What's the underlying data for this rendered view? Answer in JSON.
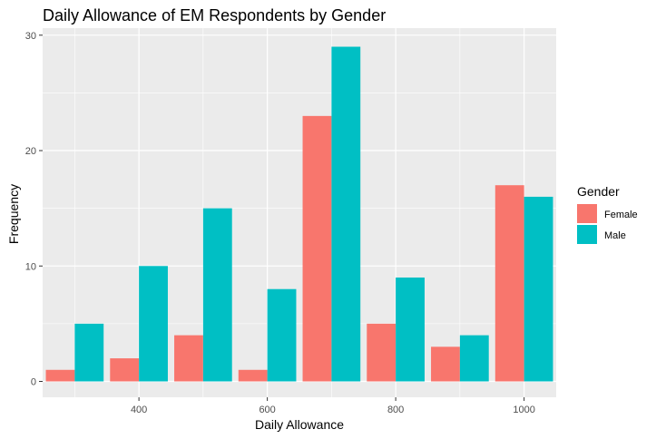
{
  "chart_data": {
    "type": "bar",
    "title": "Daily Allowance of EM Respondents by Gender",
    "xlabel": "Daily Allowance",
    "ylabel": "Frequency",
    "xlim": [
      250,
      1050
    ],
    "ylim": [
      0,
      30
    ],
    "bin_width": 100,
    "x": [
      300,
      400,
      500,
      600,
      700,
      800,
      900,
      1000
    ],
    "x_ticks": [
      400,
      600,
      800,
      1000
    ],
    "y_ticks": [
      0,
      10,
      20,
      30
    ],
    "series": [
      {
        "name": "Female",
        "color": "#F8766D",
        "values": [
          1,
          2,
          4,
          1,
          23,
          5,
          3,
          17
        ]
      },
      {
        "name": "Male",
        "color": "#00BFC4",
        "values": [
          5,
          10,
          15,
          8,
          29,
          9,
          4,
          16
        ]
      }
    ],
    "legend": {
      "title": "Gender",
      "position": "right"
    },
    "panel_background": "#EBEBEB",
    "grid_color": "#FFFFFF",
    "grid": true
  }
}
